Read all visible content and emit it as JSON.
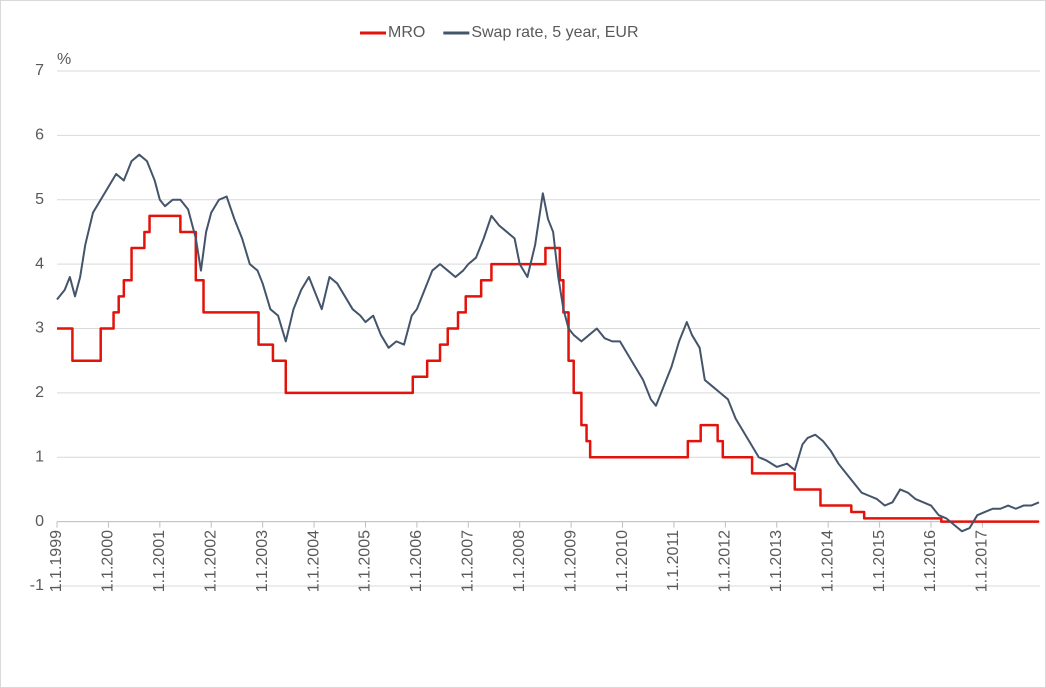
{
  "chart_data": {
    "type": "line",
    "y_unit_label": "%",
    "xlim": [
      1999,
      2018.12
    ],
    "xticks": [
      {
        "value": 1999,
        "label": "1.1.1999"
      },
      {
        "value": 2000,
        "label": "1.1.2000"
      },
      {
        "value": 2001,
        "label": "1.1.2001"
      },
      {
        "value": 2002,
        "label": "1.1.2002"
      },
      {
        "value": 2003,
        "label": "1.1.2003"
      },
      {
        "value": 2004,
        "label": "1.1.2004"
      },
      {
        "value": 2005,
        "label": "1.1.2005"
      },
      {
        "value": 2006,
        "label": "1.1.2006"
      },
      {
        "value": 2007,
        "label": "1.1.2007"
      },
      {
        "value": 2008,
        "label": "1.1.2008"
      },
      {
        "value": 2009,
        "label": "1.1.2009"
      },
      {
        "value": 2010,
        "label": "1.1.2010"
      },
      {
        "value": 2011,
        "label": "1.1.2011"
      },
      {
        "value": 2012,
        "label": "1.1.2012"
      },
      {
        "value": 2013,
        "label": "1.1.2013"
      },
      {
        "value": 2014,
        "label": "1.1.2014"
      },
      {
        "value": 2015,
        "label": "1.1.2015"
      },
      {
        "value": 2016,
        "label": "1.1.2016"
      },
      {
        "value": 2017,
        "label": "1.1.2017"
      }
    ],
    "ylim": [
      -1,
      7
    ],
    "yticks": [
      -1,
      0,
      1,
      2,
      3,
      4,
      5,
      6,
      7
    ],
    "grid": true,
    "legend": "top",
    "series": [
      {
        "name": "MRO",
        "color": "#e3120b",
        "drawstyle": "steps-post",
        "x": [
          1999,
          1999.3,
          1999.85,
          2000.1,
          2000.2,
          2000.3,
          2000.45,
          2000.7,
          2000.8,
          2001.4,
          2001.7,
          2001.85,
          2002.92,
          2003.2,
          2003.45,
          2005.92,
          2006.2,
          2006.45,
          2006.6,
          2006.8,
          2006.95,
          2007.25,
          2007.45,
          2008.5,
          2008.78,
          2008.85,
          2008.95,
          2009.05,
          2009.2,
          2009.3,
          2009.37,
          2011.27,
          2011.52,
          2011.85,
          2011.95,
          2012.52,
          2013.35,
          2013.85,
          2014.45,
          2014.7,
          2016.2,
          2018.1
        ],
        "values": [
          3.0,
          2.5,
          3.0,
          3.25,
          3.5,
          3.75,
          4.25,
          4.5,
          4.75,
          4.5,
          3.75,
          3.25,
          2.75,
          2.5,
          2.0,
          2.25,
          2.5,
          2.75,
          3.0,
          3.25,
          3.5,
          3.75,
          4.0,
          4.25,
          3.75,
          3.25,
          2.5,
          2.0,
          1.5,
          1.25,
          1.0,
          1.25,
          1.5,
          1.25,
          1.0,
          0.75,
          0.5,
          0.25,
          0.15,
          0.05,
          0.0,
          0.0
        ]
      },
      {
        "name": "Swap rate, 5 year, EUR",
        "color": "#44546a",
        "x": [
          1999.0,
          1999.15,
          1999.25,
          1999.35,
          1999.45,
          1999.55,
          1999.7,
          1999.85,
          2000.0,
          2000.15,
          2000.3,
          2000.45,
          2000.6,
          2000.75,
          2000.9,
          2001.0,
          2001.1,
          2001.25,
          2001.4,
          2001.55,
          2001.7,
          2001.8,
          2001.9,
          2002.0,
          2002.15,
          2002.3,
          2002.45,
          2002.6,
          2002.75,
          2002.9,
          2003.0,
          2003.15,
          2003.3,
          2003.45,
          2003.6,
          2003.75,
          2003.9,
          2004.0,
          2004.15,
          2004.3,
          2004.45,
          2004.6,
          2004.75,
          2004.9,
          2005.0,
          2005.15,
          2005.3,
          2005.45,
          2005.6,
          2005.75,
          2005.9,
          2006.0,
          2006.15,
          2006.3,
          2006.45,
          2006.6,
          2006.75,
          2006.9,
          2007.0,
          2007.15,
          2007.3,
          2007.45,
          2007.6,
          2007.75,
          2007.9,
          2008.0,
          2008.15,
          2008.3,
          2008.45,
          2008.55,
          2008.65,
          2008.75,
          2008.85,
          2008.95,
          2009.05,
          2009.2,
          2009.35,
          2009.5,
          2009.65,
          2009.8,
          2009.95,
          2010.1,
          2010.25,
          2010.4,
          2010.55,
          2010.65,
          2010.8,
          2010.95,
          2011.1,
          2011.25,
          2011.35,
          2011.5,
          2011.6,
          2011.75,
          2011.9,
          2012.05,
          2012.2,
          2012.35,
          2012.5,
          2012.65,
          2012.8,
          2013.0,
          2013.2,
          2013.35,
          2013.5,
          2013.6,
          2013.75,
          2013.9,
          2014.05,
          2014.2,
          2014.35,
          2014.5,
          2014.65,
          2014.8,
          2014.95,
          2015.1,
          2015.25,
          2015.4,
          2015.55,
          2015.7,
          2015.85,
          2016.0,
          2016.15,
          2016.3,
          2016.45,
          2016.6,
          2016.75,
          2016.9,
          2017.05,
          2017.2,
          2017.35,
          2017.5,
          2017.65,
          2017.8,
          2017.95,
          2018.1
        ],
        "values": [
          3.45,
          3.6,
          3.8,
          3.5,
          3.8,
          4.3,
          4.8,
          5.0,
          5.2,
          5.4,
          5.3,
          5.6,
          5.7,
          5.6,
          5.3,
          5.0,
          4.9,
          5.0,
          5.0,
          4.85,
          4.4,
          3.9,
          4.5,
          4.8,
          5.0,
          5.05,
          4.7,
          4.4,
          4.0,
          3.9,
          3.7,
          3.3,
          3.2,
          2.8,
          3.3,
          3.6,
          3.8,
          3.6,
          3.3,
          3.8,
          3.7,
          3.5,
          3.3,
          3.2,
          3.1,
          3.2,
          2.9,
          2.7,
          2.8,
          2.75,
          3.2,
          3.3,
          3.6,
          3.9,
          4.0,
          3.9,
          3.8,
          3.9,
          4.0,
          4.1,
          4.4,
          4.75,
          4.6,
          4.5,
          4.4,
          4.0,
          3.8,
          4.3,
          5.1,
          4.7,
          4.5,
          3.8,
          3.3,
          3.0,
          2.9,
          2.8,
          2.9,
          3.0,
          2.85,
          2.8,
          2.8,
          2.6,
          2.4,
          2.2,
          1.9,
          1.8,
          2.1,
          2.4,
          2.8,
          3.1,
          2.9,
          2.7,
          2.2,
          2.1,
          2.0,
          1.9,
          1.6,
          1.4,
          1.2,
          1.0,
          0.95,
          0.85,
          0.9,
          0.8,
          1.2,
          1.3,
          1.35,
          1.25,
          1.1,
          0.9,
          0.75,
          0.6,
          0.45,
          0.4,
          0.35,
          0.25,
          0.3,
          0.5,
          0.45,
          0.35,
          0.3,
          0.25,
          0.1,
          0.05,
          -0.05,
          -0.15,
          -0.1,
          0.1,
          0.15,
          0.2,
          0.2,
          0.25,
          0.2,
          0.25,
          0.25,
          0.3
        ]
      }
    ]
  }
}
